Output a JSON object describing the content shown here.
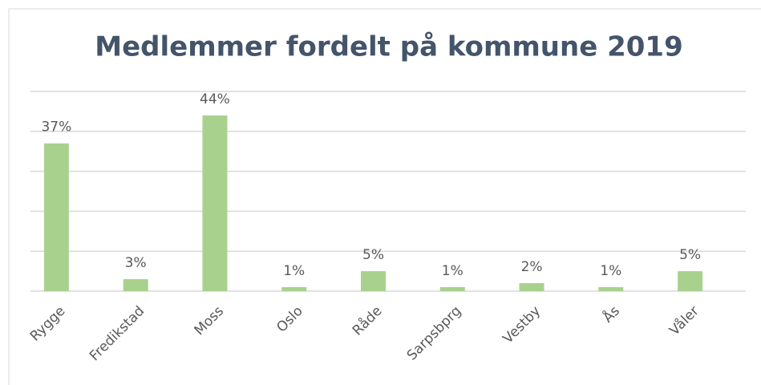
{
  "chart_data": {
    "type": "bar",
    "title": "Medlemmer fordelt på kommune 2019",
    "categories": [
      "Rygge",
      "Fredikstad",
      "Moss",
      "Oslo",
      "Råde",
      "Sarpsbprg",
      "Vestby",
      "Ås",
      "Våler"
    ],
    "values": [
      37,
      3,
      44,
      1,
      5,
      1,
      2,
      1,
      5
    ],
    "value_labels": [
      "37%",
      "3%",
      "44%",
      "1%",
      "5%",
      "1%",
      "2%",
      "1%",
      "5%"
    ],
    "color": "#a9d18e",
    "ylim": [
      0,
      50
    ],
    "yticks": [
      0,
      10,
      20,
      30,
      40,
      50
    ],
    "grid": true
  }
}
